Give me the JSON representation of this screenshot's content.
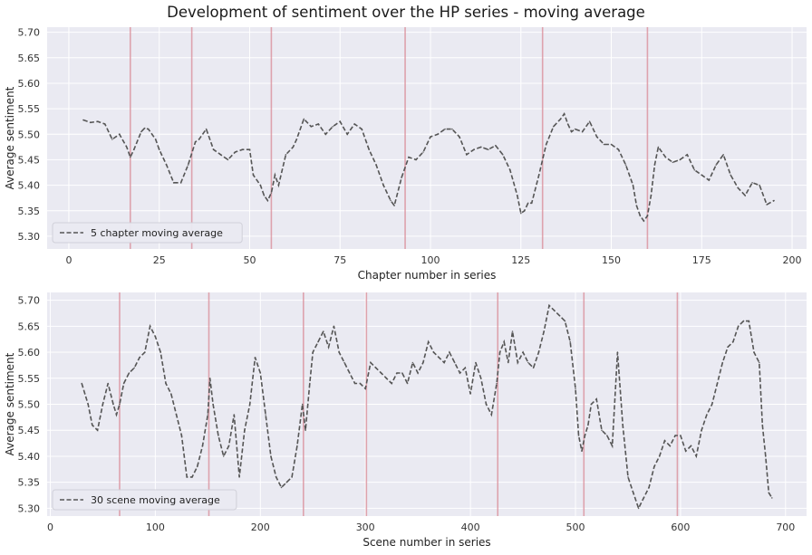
{
  "figure": {
    "title": "Development of sentiment over the HP series - moving average"
  },
  "style": {
    "plot_background": "#eaeaf2",
    "grid_color": "#ffffff",
    "line_color": "#555555",
    "divider_color": "#d98a96",
    "text_color": "#333333"
  },
  "chart_data": [
    {
      "type": "line",
      "xlabel": "Chapter number in series",
      "ylabel": "Average sentiment",
      "xlim": [
        -6,
        204
      ],
      "ylim": [
        5.275,
        5.71
      ],
      "xticks": [
        0,
        25,
        50,
        75,
        100,
        125,
        150,
        175,
        200
      ],
      "yticks": [
        5.3,
        5.35,
        5.4,
        5.45,
        5.5,
        5.55,
        5.6,
        5.65,
        5.7
      ],
      "ytick_labels": [
        "5.30",
        "5.35",
        "5.40",
        "5.45",
        "5.50",
        "5.55",
        "5.60",
        "5.65",
        "5.70"
      ],
      "legend_location": "lower left",
      "grid": true,
      "book_boundaries": [
        17,
        34,
        56,
        93,
        131,
        160
      ],
      "series": [
        {
          "name": "5 chapter moving average",
          "style": "dashed",
          "x": [
            4,
            6,
            8,
            10,
            12,
            13,
            14,
            16,
            17,
            18,
            20,
            21,
            22,
            24,
            25,
            27,
            29,
            31,
            33,
            35,
            36,
            38,
            40,
            42,
            44,
            46,
            48,
            50,
            51,
            53,
            54,
            55,
            56,
            57,
            58,
            60,
            62,
            63,
            65,
            67,
            69,
            71,
            73,
            75,
            77,
            79,
            81,
            83,
            85,
            87,
            89,
            90,
            92,
            94,
            96,
            98,
            100,
            102,
            104,
            106,
            108,
            110,
            112,
            114,
            116,
            118,
            120,
            122,
            124,
            125,
            126,
            127,
            128,
            130,
            132,
            134,
            136,
            137,
            138,
            139,
            140,
            142,
            144,
            146,
            148,
            150,
            152,
            154,
            156,
            157,
            158,
            159,
            160,
            161,
            162,
            163,
            165,
            167,
            169,
            171,
            173,
            175,
            177,
            179,
            181,
            183,
            185,
            187,
            189,
            191,
            193,
            195
          ],
          "y": [
            5.528,
            5.523,
            5.525,
            5.52,
            5.49,
            5.495,
            5.5,
            5.475,
            5.455,
            5.47,
            5.505,
            5.512,
            5.51,
            5.49,
            5.47,
            5.44,
            5.405,
            5.405,
            5.44,
            5.485,
            5.49,
            5.51,
            5.47,
            5.46,
            5.45,
            5.465,
            5.47,
            5.47,
            5.42,
            5.4,
            5.38,
            5.37,
            5.385,
            5.42,
            5.4,
            5.46,
            5.475,
            5.49,
            5.53,
            5.515,
            5.52,
            5.5,
            5.515,
            5.525,
            5.5,
            5.52,
            5.51,
            5.47,
            5.44,
            5.4,
            5.37,
            5.36,
            5.415,
            5.455,
            5.45,
            5.465,
            5.495,
            5.5,
            5.51,
            5.51,
            5.495,
            5.46,
            5.47,
            5.475,
            5.47,
            5.478,
            5.46,
            5.43,
            5.38,
            5.345,
            5.35,
            5.365,
            5.365,
            5.42,
            5.48,
            5.515,
            5.53,
            5.54,
            5.52,
            5.505,
            5.51,
            5.505,
            5.525,
            5.495,
            5.48,
            5.48,
            5.47,
            5.44,
            5.4,
            5.36,
            5.34,
            5.33,
            5.34,
            5.38,
            5.44,
            5.475,
            5.455,
            5.445,
            5.45,
            5.46,
            5.43,
            5.42,
            5.41,
            5.44,
            5.46,
            5.42,
            5.395,
            5.38,
            5.405,
            5.4,
            5.362,
            5.37
          ]
        }
      ]
    },
    {
      "type": "line",
      "xlabel": "Scene number in series",
      "ylabel": "Average sentiment",
      "xlim": [
        -3,
        720
      ],
      "ylim": [
        5.285,
        5.715
      ],
      "xticks": [
        0,
        100,
        200,
        300,
        400,
        500,
        600,
        700
      ],
      "yticks": [
        5.3,
        5.35,
        5.4,
        5.45,
        5.5,
        5.55,
        5.6,
        5.65,
        5.7
      ],
      "ytick_labels": [
        "5.30",
        "5.35",
        "5.40",
        "5.45",
        "5.50",
        "5.55",
        "5.60",
        "5.65",
        "5.70"
      ],
      "legend_location": "lower left",
      "grid": true,
      "book_boundaries": [
        66,
        151,
        241,
        301,
        426,
        508,
        597
      ],
      "series": [
        {
          "name": "30 scene moving average",
          "style": "dashed",
          "x": [
            30,
            33,
            36,
            40,
            45,
            50,
            55,
            60,
            63,
            66,
            70,
            75,
            80,
            85,
            90,
            95,
            100,
            105,
            110,
            115,
            120,
            125,
            130,
            135,
            140,
            145,
            150,
            152,
            155,
            160,
            165,
            170,
            175,
            180,
            185,
            190,
            195,
            200,
            205,
            210,
            215,
            220,
            225,
            230,
            235,
            240,
            243,
            247,
            250,
            255,
            260,
            265,
            270,
            275,
            280,
            285,
            290,
            295,
            300,
            305,
            310,
            315,
            320,
            325,
            330,
            335,
            340,
            345,
            350,
            355,
            360,
            365,
            370,
            375,
            380,
            385,
            390,
            395,
            400,
            405,
            410,
            415,
            420,
            425,
            428,
            432,
            436,
            440,
            445,
            450,
            455,
            460,
            465,
            470,
            475,
            480,
            485,
            490,
            495,
            500,
            503,
            506,
            509,
            512,
            515,
            520,
            525,
            530,
            535,
            540,
            545,
            550,
            555,
            560,
            565,
            570,
            575,
            580,
            585,
            590,
            595,
            600,
            605,
            610,
            615,
            620,
            625,
            630,
            635,
            640,
            645,
            650,
            655,
            660,
            665,
            670,
            675,
            678,
            681,
            684,
            687
          ],
          "y": [
            5.54,
            5.52,
            5.5,
            5.46,
            5.45,
            5.5,
            5.54,
            5.5,
            5.48,
            5.5,
            5.54,
            5.56,
            5.57,
            5.59,
            5.6,
            5.65,
            5.63,
            5.6,
            5.54,
            5.52,
            5.48,
            5.44,
            5.36,
            5.36,
            5.38,
            5.42,
            5.48,
            5.55,
            5.5,
            5.44,
            5.4,
            5.42,
            5.48,
            5.36,
            5.45,
            5.5,
            5.59,
            5.56,
            5.48,
            5.4,
            5.36,
            5.34,
            5.35,
            5.36,
            5.42,
            5.5,
            5.45,
            5.54,
            5.6,
            5.62,
            5.64,
            5.61,
            5.65,
            5.6,
            5.58,
            5.56,
            5.54,
            5.54,
            5.53,
            5.58,
            5.57,
            5.56,
            5.55,
            5.54,
            5.56,
            5.56,
            5.54,
            5.58,
            5.56,
            5.58,
            5.62,
            5.6,
            5.59,
            5.58,
            5.6,
            5.58,
            5.56,
            5.57,
            5.52,
            5.58,
            5.55,
            5.5,
            5.48,
            5.54,
            5.6,
            5.62,
            5.58,
            5.64,
            5.58,
            5.6,
            5.58,
            5.57,
            5.6,
            5.64,
            5.69,
            5.68,
            5.67,
            5.66,
            5.62,
            5.53,
            5.44,
            5.41,
            5.44,
            5.46,
            5.5,
            5.51,
            5.45,
            5.44,
            5.42,
            5.6,
            5.46,
            5.36,
            5.33,
            5.3,
            5.32,
            5.34,
            5.38,
            5.4,
            5.43,
            5.42,
            5.44,
            5.44,
            5.41,
            5.42,
            5.4,
            5.45,
            5.48,
            5.5,
            5.54,
            5.58,
            5.61,
            5.62,
            5.65,
            5.66,
            5.66,
            5.6,
            5.58,
            5.46,
            5.4,
            5.33,
            5.32
          ]
        }
      ]
    }
  ]
}
